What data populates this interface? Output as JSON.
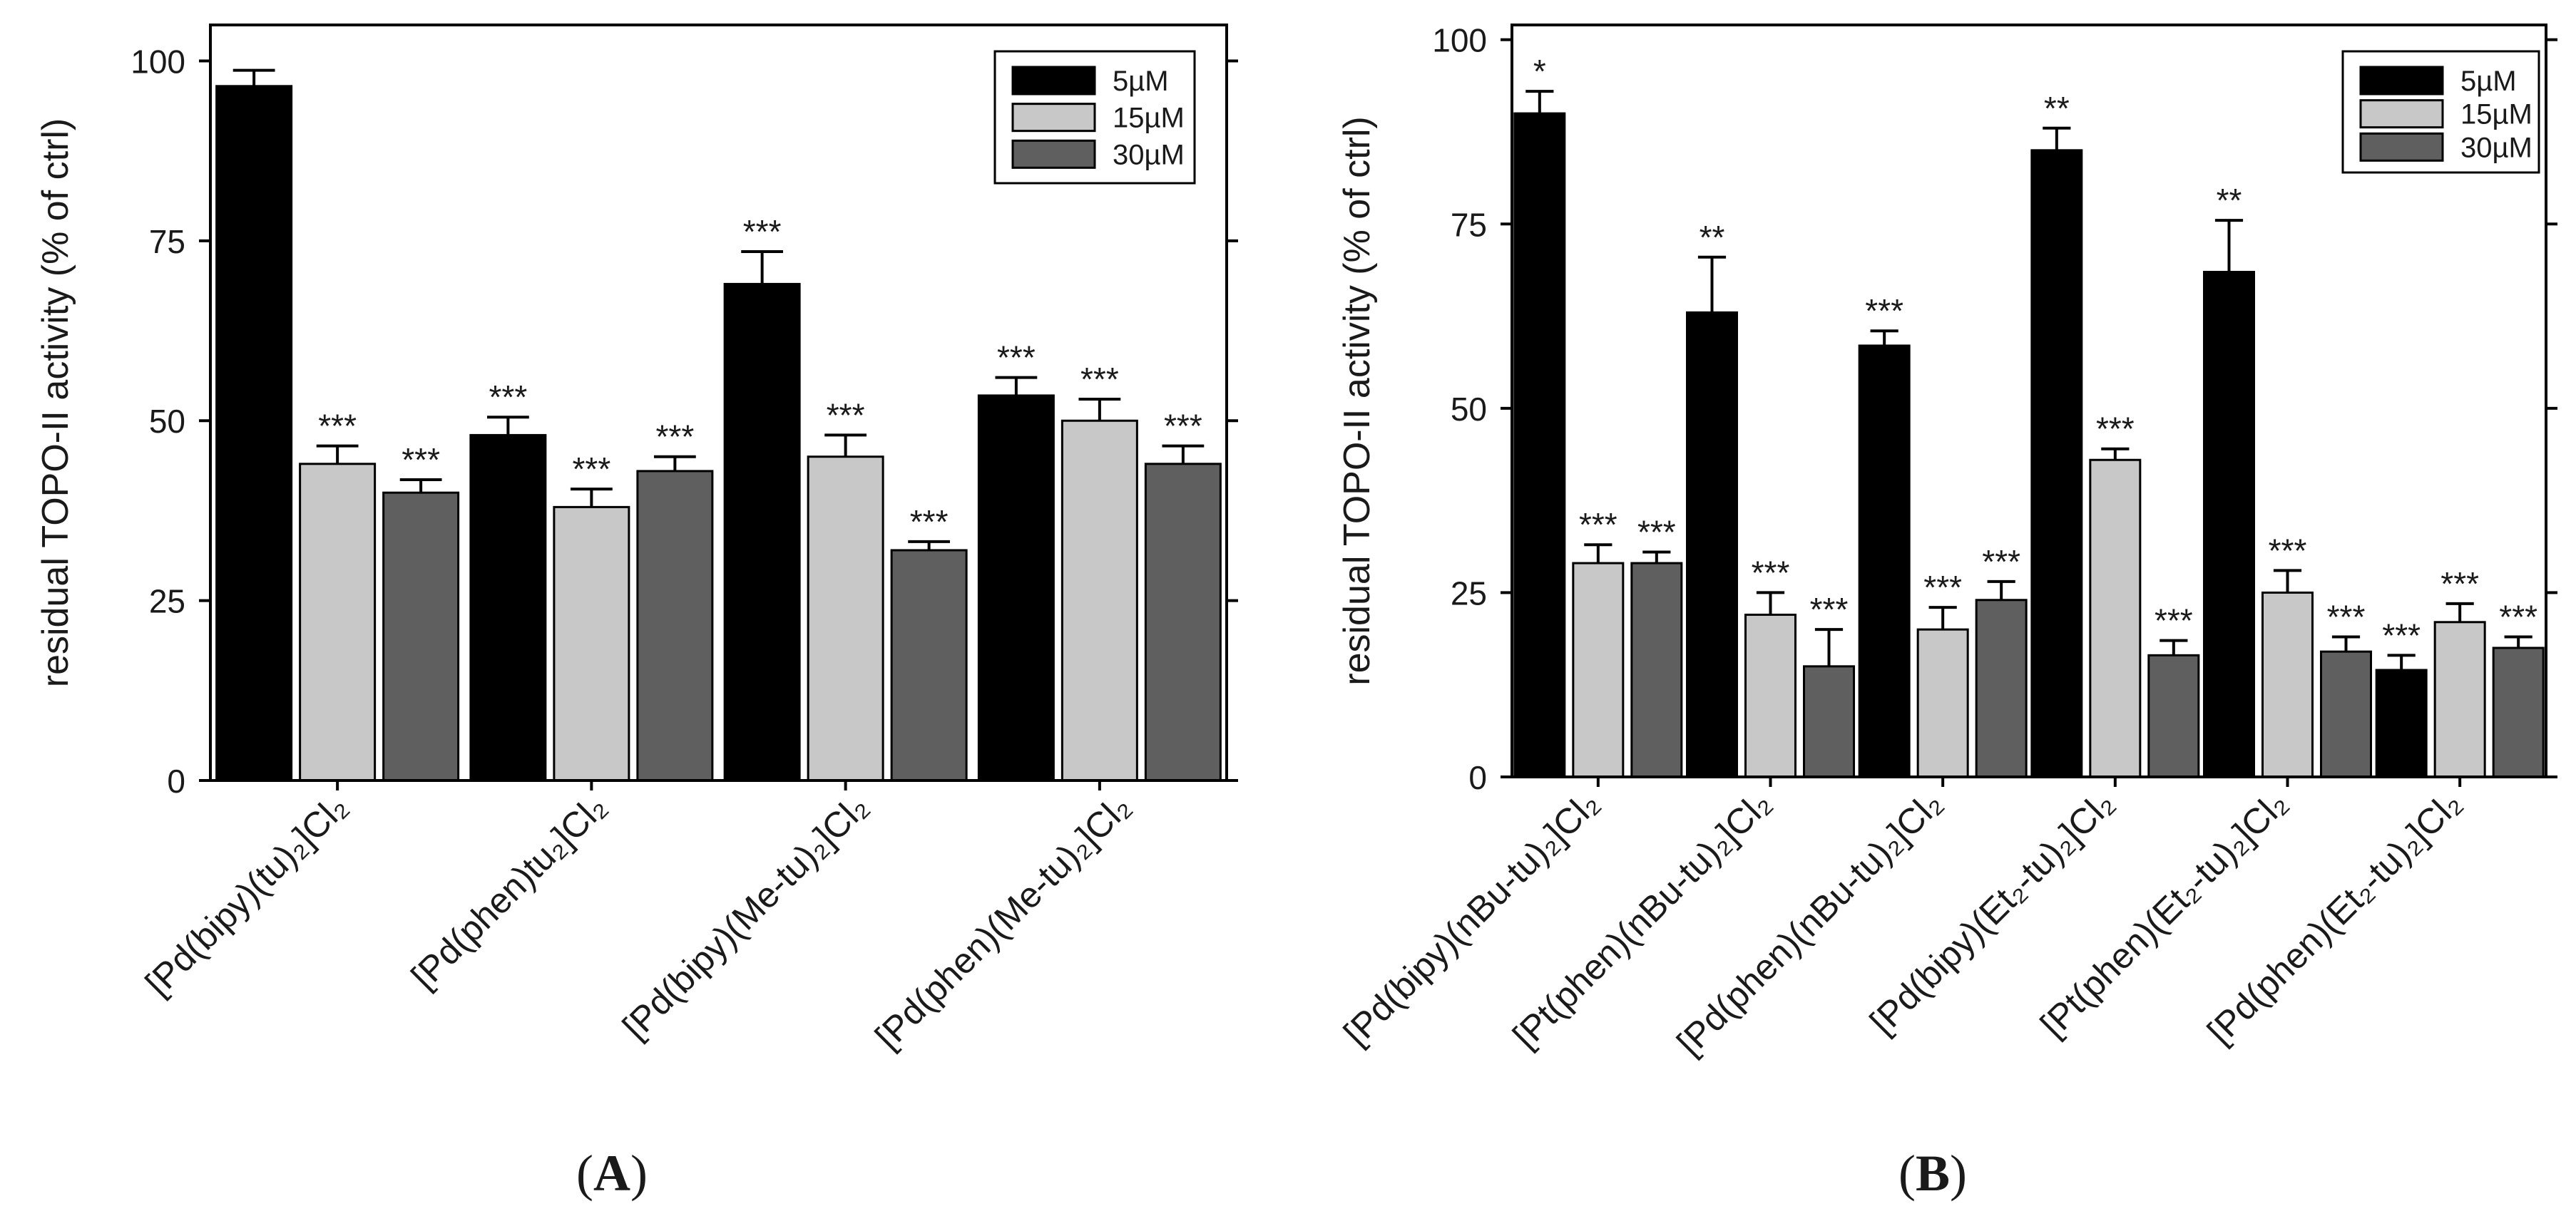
{
  "colors": {
    "5uM": "#000000",
    "15uM": "#c8c8c8",
    "30uM": "#5f5f5f"
  },
  "chart_data": [
    {
      "type": "bar",
      "panel": "A",
      "panel_label": "A",
      "ylabel": "residual TOPO-II activity (% of ctrl)",
      "ylim": [
        0,
        105
      ],
      "yticks": [
        0,
        25,
        50,
        75,
        100
      ],
      "legend": "top-right",
      "legend_entries": [
        "5µM",
        "15µM",
        "30µM"
      ],
      "categories": [
        "[Pd(bipy)(tu)₂]Cl₂",
        "[Pd(phen)tu₂]Cl₂",
        "[Pd(bipy)(Me-tu)₂]Cl₂",
        "[Pd(phen)(Me-tu)₂]Cl₂"
      ],
      "series": [
        {
          "name": "5µM",
          "values": [
            96.5,
            48,
            69,
            53.5
          ],
          "errors": [
            2.2,
            2.5,
            4.5,
            2.5
          ],
          "significance": [
            "",
            "***",
            "***",
            "***"
          ]
        },
        {
          "name": "15µM",
          "values": [
            44,
            38,
            45,
            50
          ],
          "errors": [
            2.5,
            2.5,
            3,
            3
          ],
          "significance": [
            "***",
            "***",
            "***",
            "***"
          ]
        },
        {
          "name": "30µM",
          "values": [
            40,
            43,
            32,
            44
          ],
          "errors": [
            1.8,
            2,
            1.2,
            2.5
          ],
          "significance": [
            "***",
            "***",
            "***",
            "***"
          ]
        }
      ]
    },
    {
      "type": "bar",
      "panel": "B",
      "panel_label": "B",
      "ylabel": "residual TOPO-II activity (% of ctrl)",
      "ylim": [
        0,
        102
      ],
      "yticks": [
        0,
        25,
        50,
        75,
        100
      ],
      "legend": "top-right",
      "legend_entries": [
        "5µM",
        "15µM",
        "30µM"
      ],
      "categories": [
        "[Pd(bipy)(nBu-tu)₂]Cl₂",
        "[Pt(phen)(nBu-tu)₂]Cl₂",
        "[Pd(phen)(nBu-tu)₂]Cl₂",
        "[Pd(bipy)(Et₂-tu)₂]Cl₂",
        "[Pt(phen)(Et₂-tu)₂]Cl₂",
        "[Pd(phen)(Et₂-tu)₂]Cl₂"
      ],
      "series": [
        {
          "name": "5µM",
          "values": [
            90,
            63,
            58.5,
            85,
            68.5,
            14.5
          ],
          "errors": [
            3,
            7.5,
            2,
            3,
            7,
            2
          ],
          "significance": [
            "*",
            "**",
            "***",
            "**",
            "**",
            "***"
          ]
        },
        {
          "name": "15µM",
          "values": [
            29,
            22,
            20,
            43,
            25,
            21
          ],
          "errors": [
            2.5,
            3,
            3,
            1.5,
            3,
            2.5
          ],
          "significance": [
            "***",
            "***",
            "***",
            "***",
            "***",
            "***"
          ]
        },
        {
          "name": "30µM",
          "values": [
            29,
            15,
            24,
            16.5,
            17,
            17.5
          ],
          "errors": [
            1.5,
            5,
            2.5,
            2,
            2,
            1.5
          ],
          "significance": [
            "***",
            "***",
            "***",
            "***",
            "***",
            "***"
          ]
        }
      ]
    }
  ]
}
